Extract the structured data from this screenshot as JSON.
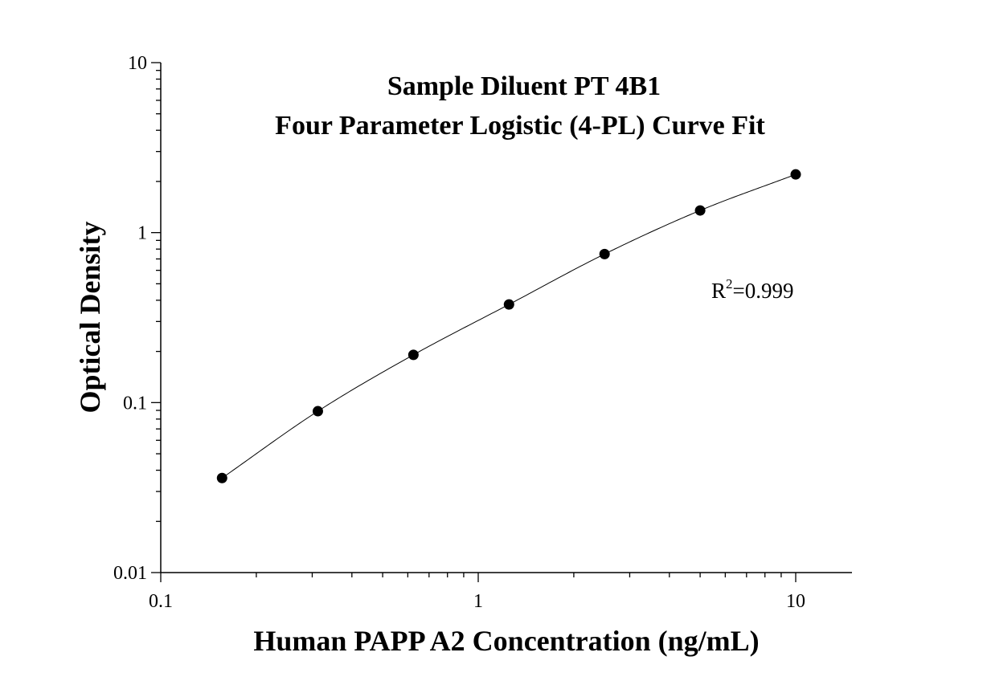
{
  "chart_data": {
    "type": "scatter",
    "title": "Sample Diluent PT 4B1",
    "subtitle": "Four Parameter Logistic (4-PL) Curve Fit",
    "xlabel": "Human PAPP A2 Concentration (ng/mL)",
    "ylabel": "Optical Density",
    "xscale": "log",
    "yscale": "log",
    "xlim": [
      0.1,
      14.5
    ],
    "ylim": [
      0.01,
      10
    ],
    "xticks": [
      0.1,
      1,
      10
    ],
    "xtick_labels": [
      "0.1",
      "1",
      "10"
    ],
    "yticks": [
      0.01,
      0.1,
      1,
      10
    ],
    "ytick_labels": [
      "0.01",
      "0.1",
      "1",
      "10"
    ],
    "grid": false,
    "points": {
      "x": [
        0.156,
        0.3125,
        0.625,
        1.25,
        2.5,
        5,
        10
      ],
      "y": [
        0.036,
        0.089,
        0.191,
        0.378,
        0.748,
        1.35,
        2.2
      ]
    },
    "fit_curve": {
      "model": "4-PL",
      "x_range": [
        0.156,
        10
      ]
    },
    "annotation": {
      "r": "R",
      "sup": "2",
      "value": "=0.999"
    },
    "colors": {
      "points": "#000000",
      "curve": "#000000",
      "axes": "#000000"
    }
  }
}
